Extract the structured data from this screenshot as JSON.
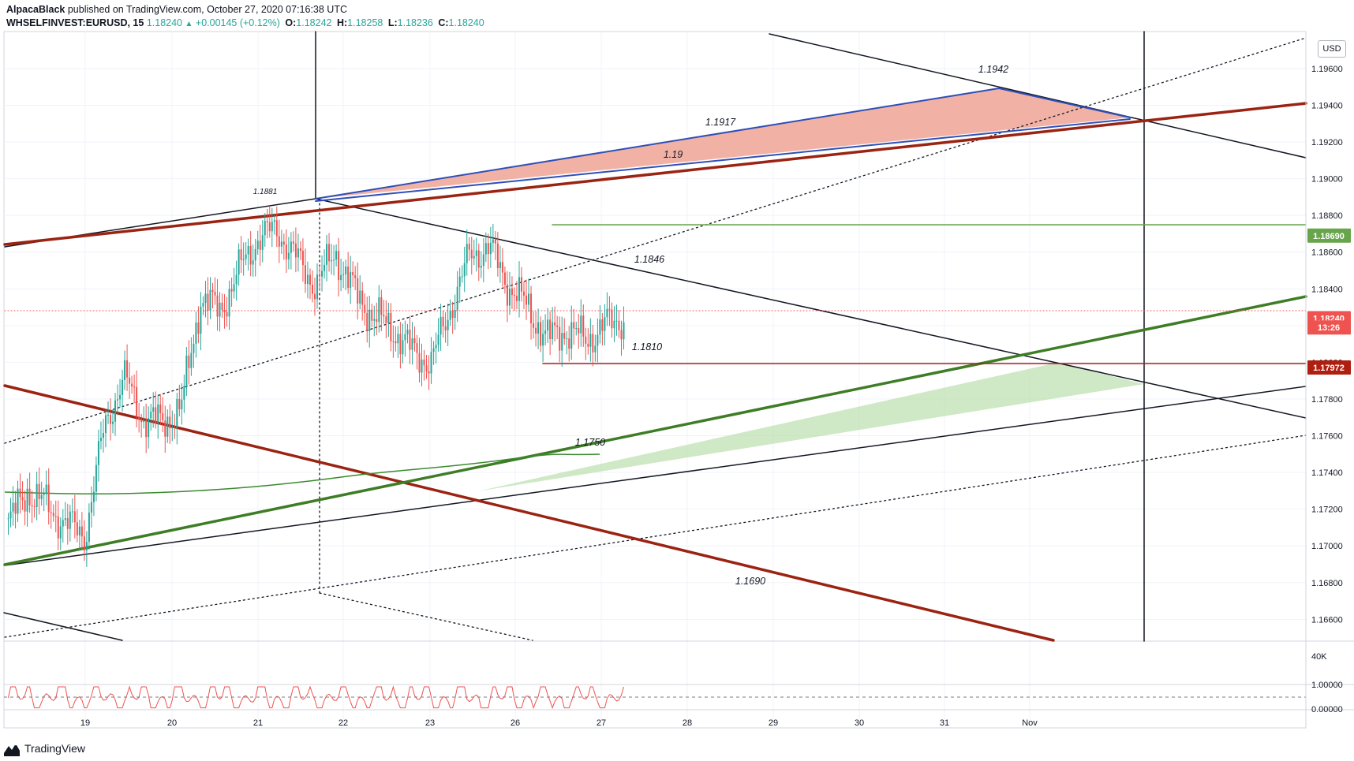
{
  "header": {
    "author": "AlpacaBlack",
    "publish_text": "published on TradingView.com, October 27, 2020 07:16:38 UTC",
    "symbol": "WHSELFINVEST:EURUSD, 15",
    "last": "1.18240",
    "change": "+0.00145 (+0.12%)",
    "o_label": "O:",
    "o": "1.18242",
    "h_label": "H:",
    "h": "1.18258",
    "l_label": "L:",
    "l": "1.18236",
    "c_label": "C:",
    "c": "1.18240"
  },
  "currency_button": "USD",
  "footer": {
    "brand": "TradingView"
  },
  "colors": {
    "up": "#26a69a",
    "down": "#ef5350",
    "channel_red": "#9b2312",
    "trend_green": "#3e7d25",
    "blue_line": "#2e4fb8",
    "h_line_green": "#67a44a",
    "h_line_red": "#b01e10",
    "red_fill": "#eea595",
    "green_fill": "#bfe0b2"
  },
  "chart_data": {
    "type": "candlestick",
    "symbol": "EURUSD",
    "interval": "15",
    "x_ticks": [
      "19",
      "20",
      "21",
      "22",
      "23",
      "26",
      "27",
      "28",
      "29",
      "30",
      "31",
      "Nov"
    ],
    "y_ticks": [
      "1.19600",
      "1.19400",
      "1.19200",
      "1.19000",
      "1.18800",
      "1.18600",
      "1.18400",
      "1.18200",
      "1.18000",
      "1.17800",
      "1.17600",
      "1.17400",
      "1.17200",
      "1.17000",
      "1.16800",
      "1.16600"
    ],
    "ylim": [
      1.1655,
      1.1975
    ],
    "price_series": [
      [
        "19",
        1.1712
      ],
      [
        "19",
        1.173
      ],
      [
        "19",
        1.1722
      ],
      [
        "19",
        1.1712
      ],
      [
        "19",
        1.1706
      ],
      [
        "20",
        1.1765
      ],
      [
        "20",
        1.1792
      ],
      [
        "20",
        1.177
      ],
      [
        "20",
        1.1767
      ],
      [
        "20",
        1.1775
      ],
      [
        "21",
        1.1835
      ],
      [
        "21",
        1.1828
      ],
      [
        "21",
        1.185
      ],
      [
        "21",
        1.1868
      ],
      [
        "21",
        1.1872
      ],
      [
        "22",
        1.1856
      ],
      [
        "22",
        1.1842
      ],
      [
        "22",
        1.186
      ],
      [
        "22",
        1.1838
      ],
      [
        "22",
        1.1825
      ],
      [
        "23",
        1.1818
      ],
      [
        "23",
        1.1806
      ],
      [
        "23",
        1.18
      ],
      [
        "23",
        1.183
      ],
      [
        "23",
        1.1858
      ],
      [
        "26",
        1.1863
      ],
      [
        "26",
        1.1842
      ],
      [
        "26",
        1.183
      ],
      [
        "26",
        1.1813
      ],
      [
        "26",
        1.1818
      ],
      [
        "27",
        1.1812
      ],
      [
        "27",
        1.182
      ],
      [
        "27",
        1.1824
      ]
    ],
    "price_labels": [
      {
        "text": "1.18690",
        "value": 1.1869,
        "color": "#67a44a"
      },
      {
        "text": "1.18240",
        "value": 1.1824,
        "color": "#ef5350"
      },
      {
        "text": "13:26",
        "value": 1.1819,
        "color": "#ef5350"
      },
      {
        "text": "1.17972",
        "value": 1.17972,
        "color": "#b01e10"
      }
    ],
    "annotations": [
      "1.1942",
      "1.1917",
      "1.19",
      "1.1881",
      "1.1846",
      "1.1810",
      "1.1750",
      "1.1690"
    ],
    "volume_axis": [
      "40K"
    ],
    "oscillator_axis": [
      "1.00000",
      "0.00000"
    ],
    "grid": true
  }
}
